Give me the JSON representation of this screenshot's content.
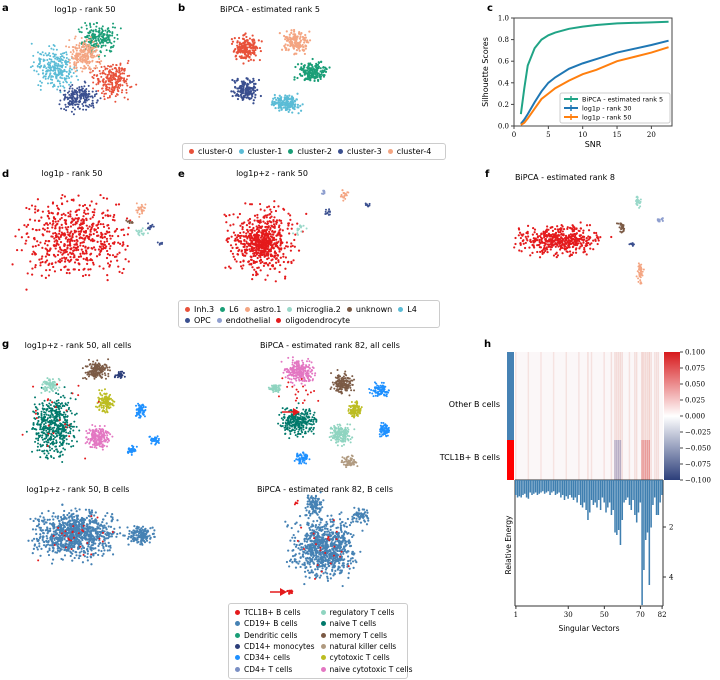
{
  "panels": {
    "a": {
      "label": "a",
      "title": "log1p - rank 50"
    },
    "b": {
      "label": "b",
      "title": "BiPCA - estimated rank 5"
    },
    "c": {
      "label": "c"
    },
    "d": {
      "label": "d",
      "title": "log1p - rank 50"
    },
    "e": {
      "label": "e",
      "title": "log1p+z - rank 50"
    },
    "f": {
      "label": "f",
      "title": "BiPCA - estimated rank 8"
    },
    "g": {
      "label": "g",
      "t1": "log1p+z - rank 50, all cells",
      "t2": "BiPCA - estimated rank 82, all cells",
      "t3": "log1p+z - rank 50, B cells",
      "t4": "BiPCA - estimated rank 82, B cells"
    },
    "h": {
      "label": "h",
      "row_labels": [
        "Other B cells",
        "TCL1B+ B cells"
      ]
    }
  },
  "legend1": [
    {
      "label": "cluster-0",
      "color": "#e8513a"
    },
    {
      "label": "cluster-1",
      "color": "#5bbcd6"
    },
    {
      "label": "cluster-2",
      "color": "#1a9e77"
    },
    {
      "label": "cluster-3",
      "color": "#3a4f8f"
    },
    {
      "label": "cluster-4",
      "color": "#f4a582"
    }
  ],
  "legend2": [
    {
      "label": "Inh.3",
      "color": "#e8513a"
    },
    {
      "label": "L6",
      "color": "#1a9e77"
    },
    {
      "label": "astro.1",
      "color": "#f4a582"
    },
    {
      "label": "microglia.2",
      "color": "#99d8c9"
    },
    {
      "label": "unknown",
      "color": "#7b5a45"
    },
    {
      "label": "L4",
      "color": "#5bbcd6"
    },
    {
      "label": "OPC",
      "color": "#3a4f8f"
    },
    {
      "label": "endothelial",
      "color": "#8f9fcf"
    },
    {
      "label": "oligodendrocyte",
      "color": "#e41a1c"
    }
  ],
  "legend3": [
    {
      "label": "TCL1B+ B cells",
      "color": "#e41a1c"
    },
    {
      "label": "regulatory T cells",
      "color": "#8fd4c0"
    },
    {
      "label": "CD19+ B cells",
      "color": "#4682b4"
    },
    {
      "label": "naive T cells",
      "color": "#00796b"
    },
    {
      "label": "Dendritic cells",
      "color": "#1a9e77"
    },
    {
      "label": "memory T cells",
      "color": "#7b5a45"
    },
    {
      "label": "CD14+ monocytes",
      "color": "#2c3e7a"
    },
    {
      "label": "natural killer cells",
      "color": "#b09a80"
    },
    {
      "label": "CD34+ cells",
      "color": "#1e90ff"
    },
    {
      "label": "cytotoxic T cells",
      "color": "#bcbd22"
    },
    {
      "label": "CD4+ T cells",
      "color": "#7a8fc4"
    },
    {
      "label": "naive cytotoxic T cells",
      "color": "#e377c2"
    }
  ],
  "chart_data": [
    {
      "type": "line",
      "panel": "c",
      "xlabel": "SNR",
      "ylabel": "Silhouette Scores",
      "xlim": [
        0,
        23
      ],
      "ylim": [
        0,
        1
      ],
      "xticks": [
        "0",
        "5",
        "10",
        "15",
        "20"
      ],
      "yticks": [
        "0.0",
        "0.2",
        "0.4",
        "0.6",
        "0.8",
        "1.0"
      ],
      "legend_position": "bottom-right",
      "x": [
        1,
        1.5,
        2,
        3,
        4,
        5,
        6,
        8,
        10,
        12,
        15,
        20,
        22.5
      ],
      "series": [
        {
          "name": "BiPCA - estimated rank 5",
          "color": "#20a486",
          "values": [
            0.11,
            0.35,
            0.56,
            0.72,
            0.8,
            0.84,
            0.865,
            0.9,
            0.92,
            0.935,
            0.95,
            0.96,
            0.965
          ]
        },
        {
          "name": "log1p - rank 30",
          "color": "#1f77b4",
          "values": [
            0.02,
            0.06,
            0.11,
            0.22,
            0.32,
            0.4,
            0.45,
            0.53,
            0.58,
            0.62,
            0.68,
            0.75,
            0.79
          ]
        },
        {
          "name": "log1p - rank 50",
          "color": "#ff7f0e",
          "values": [
            0.01,
            0.03,
            0.07,
            0.16,
            0.25,
            0.3,
            0.35,
            0.42,
            0.48,
            0.52,
            0.6,
            0.68,
            0.73
          ]
        }
      ]
    },
    {
      "type": "heatmap",
      "panel": "h",
      "colorbar_ticks": [
        "0.100",
        "0.075",
        "0.050",
        "0.025",
        "0.000",
        "−0.025",
        "−0.050",
        "−0.075",
        "−0.100"
      ],
      "vmin": -0.1,
      "vmax": 0.1
    },
    {
      "type": "bar",
      "panel": "h",
      "xlabel": "Singular Vectors",
      "ylabel": "Relative Energy",
      "xticks": [
        "1",
        "30",
        "50",
        "70",
        "82"
      ],
      "yticks": [
        "2",
        "4"
      ],
      "values": [
        0.6,
        0.7,
        0.65,
        0.7,
        0.6,
        0.55,
        0.7,
        0.75,
        0.5,
        0.6,
        0.55,
        0.5,
        0.6,
        0.55,
        0.5,
        0.45,
        0.55,
        0.5,
        0.45,
        0.6,
        0.5,
        0.45,
        0.6,
        0.55,
        0.5,
        0.7,
        0.6,
        0.8,
        0.65,
        0.75,
        0.6,
        0.7,
        0.8,
        0.7,
        0.9,
        0.6,
        1.0,
        1.1,
        0.9,
        1.2,
        1.6,
        1.3,
        0.8,
        1.0,
        0.9,
        1.1,
        0.8,
        1.2,
        0.7,
        0.9,
        1.3,
        1.1,
        0.9,
        1.4,
        1.2,
        2.1,
        2.2,
        2.0,
        2.6,
        1.6,
        0.9,
        0.8,
        0.7,
        1.0,
        1.2,
        0.8,
        1.4,
        1.7,
        1.3,
        0.9,
        5.0,
        3.6,
        2.4,
        2.1,
        4.2,
        1.9,
        1.0,
        0.7,
        1.4,
        1.4,
        0.9,
        0.6
      ]
    }
  ]
}
